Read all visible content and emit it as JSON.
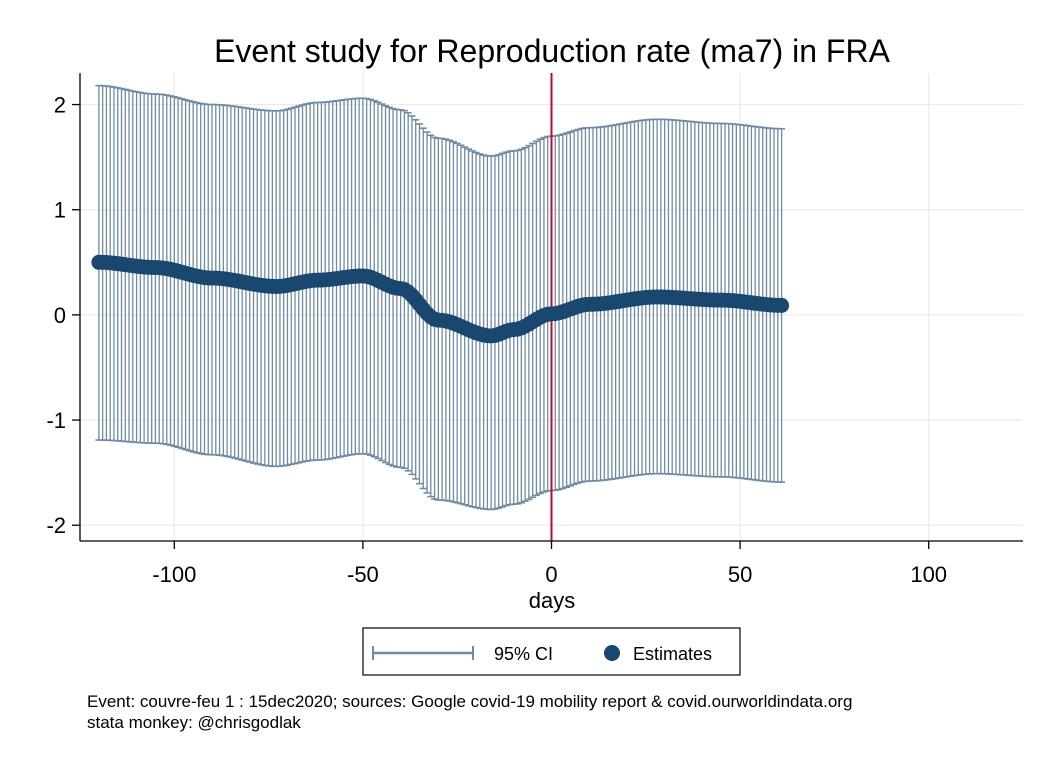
{
  "chart_data": {
    "type": "scatter",
    "title": "Event study for Reproduction rate (ma7) in FRA",
    "xlabel": "days",
    "ylabel": "",
    "xlim": [
      -125,
      125
    ],
    "ylim": [
      -2.15,
      2.3
    ],
    "xticks": [
      -100,
      -50,
      0,
      50,
      100
    ],
    "yticks": [
      -2,
      -1,
      0,
      1,
      2
    ],
    "xtick_labels": [
      "-100",
      "-50",
      "0",
      "50",
      "100"
    ],
    "ytick_labels": [
      "-2",
      "-1",
      "0",
      "1",
      "2"
    ],
    "grid": true,
    "event_line_x": 0,
    "colors": {
      "ci": "#6f8ba3",
      "estimates": "#1a476f",
      "event_line": "#c10534",
      "grid": "#eaeaea"
    },
    "x_range": [
      -120,
      61
    ],
    "estimate_anchors": [
      [
        -120,
        0.5
      ],
      [
        -105,
        0.45
      ],
      [
        -90,
        0.35
      ],
      [
        -73,
        0.27
      ],
      [
        -62,
        0.33
      ],
      [
        -50,
        0.37
      ],
      [
        -40,
        0.25
      ],
      [
        -30,
        -0.05
      ],
      [
        -16,
        -0.2
      ],
      [
        -10,
        -0.14
      ],
      [
        0,
        0.01
      ],
      [
        10,
        0.1
      ],
      [
        28,
        0.17
      ],
      [
        45,
        0.14
      ],
      [
        61,
        0.09
      ]
    ],
    "ci_upper_anchors": [
      [
        -120,
        2.18
      ],
      [
        -105,
        2.1
      ],
      [
        -90,
        2.0
      ],
      [
        -73,
        1.94
      ],
      [
        -62,
        2.02
      ],
      [
        -50,
        2.06
      ],
      [
        -40,
        1.95
      ],
      [
        -30,
        1.68
      ],
      [
        -16,
        1.51
      ],
      [
        -10,
        1.56
      ],
      [
        0,
        1.7
      ],
      [
        10,
        1.78
      ],
      [
        28,
        1.86
      ],
      [
        45,
        1.82
      ],
      [
        61,
        1.77
      ]
    ],
    "ci_lower_anchors": [
      [
        -120,
        -1.19
      ],
      [
        -105,
        -1.22
      ],
      [
        -90,
        -1.33
      ],
      [
        -73,
        -1.44
      ],
      [
        -62,
        -1.38
      ],
      [
        -50,
        -1.32
      ],
      [
        -40,
        -1.45
      ],
      [
        -30,
        -1.76
      ],
      [
        -16,
        -1.85
      ],
      [
        -10,
        -1.8
      ],
      [
        0,
        -1.67
      ],
      [
        10,
        -1.58
      ],
      [
        28,
        -1.51
      ],
      [
        45,
        -1.54
      ],
      [
        61,
        -1.59
      ]
    ],
    "legend": {
      "placement": "bottom",
      "entries": [
        "95% CI",
        "Estimates"
      ]
    },
    "notes": [
      "Event: couvre-feu 1 : 15dec2020; sources: Google covid-19 mobility report & covid.ourworldindata.org",
      "stata monkey: @chrisgodlak"
    ]
  }
}
